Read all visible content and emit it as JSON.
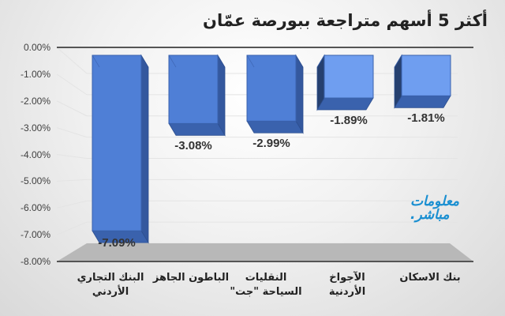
{
  "title": "أكثر 5 أسهم متراجعة ببورصة عمّان",
  "logo": {
    "line1": "معلومات",
    "line2": "مباشر."
  },
  "colors": {
    "bar_front": "#4f7fd6",
    "bar_side": "#34589e",
    "bar_top": "#6b97e3",
    "floor": "#b8b8b8",
    "axis": "#404040"
  },
  "chart_data": {
    "type": "bar",
    "title": "أكثر 5 أسهم متراجعة ببورصة عمّان",
    "categories": [
      "البنك التجاري الأردني",
      "الباطون الجاهز",
      "النقليات السياحة \"جت\"",
      "الأجواخ الأردنية",
      "بنك الاسكان"
    ],
    "category_lines": [
      [
        "البنك التجاري",
        "الأردني"
      ],
      [
        "الباطون الجاهز",
        ""
      ],
      [
        "النقليات",
        "السياحة \"جت\""
      ],
      [
        "الآجواخ",
        "الأردنية"
      ],
      [
        "بنك الاسكان",
        ""
      ]
    ],
    "values": [
      -7.09,
      -3.08,
      -2.99,
      -1.89,
      -1.81
    ],
    "value_labels": [
      "-7.09%",
      "-3.08%",
      "-2.99%",
      "-1.89%",
      "-1.81%"
    ],
    "xlabel": "",
    "ylabel": "",
    "ylim": [
      -8,
      0
    ],
    "yticks": [
      "0.00%",
      "-1.00%",
      "-2.00%",
      "-3.00%",
      "-4.00%",
      "-5.00%",
      "-6.00%",
      "-7.00%",
      "-8.00%"
    ],
    "grid": true,
    "legend": null,
    "style": "3d-column"
  }
}
